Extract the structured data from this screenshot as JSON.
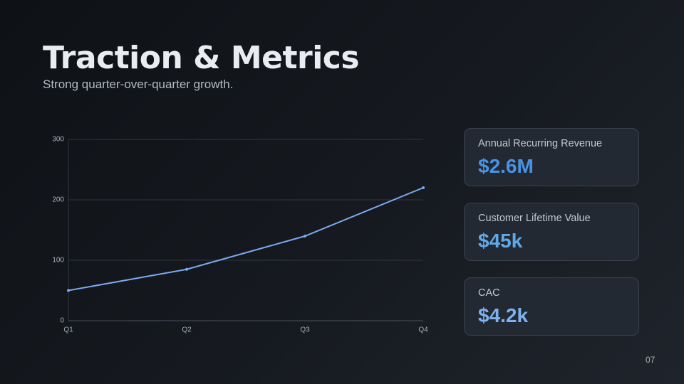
{
  "header": {
    "title": "Traction & Metrics",
    "subtitle": "Strong quarter-over-quarter growth."
  },
  "chart_data": {
    "type": "line",
    "categories": [
      "Q1",
      "Q2",
      "Q3",
      "Q4"
    ],
    "series": [
      {
        "name": "Revenue",
        "color": "#7aaaf0",
        "values": [
          50,
          85,
          140,
          220
        ]
      }
    ],
    "ylim": [
      0,
      300
    ],
    "yticks": [
      0,
      100,
      200,
      300
    ],
    "grid": true
  },
  "metrics": [
    {
      "label": "Annual Recurring Revenue",
      "value": "$2.6M"
    },
    {
      "label": "Customer Lifetime Value",
      "value": "$45k"
    },
    {
      "label": "CAC",
      "value": "$4.2k"
    }
  ],
  "page_number": "07"
}
